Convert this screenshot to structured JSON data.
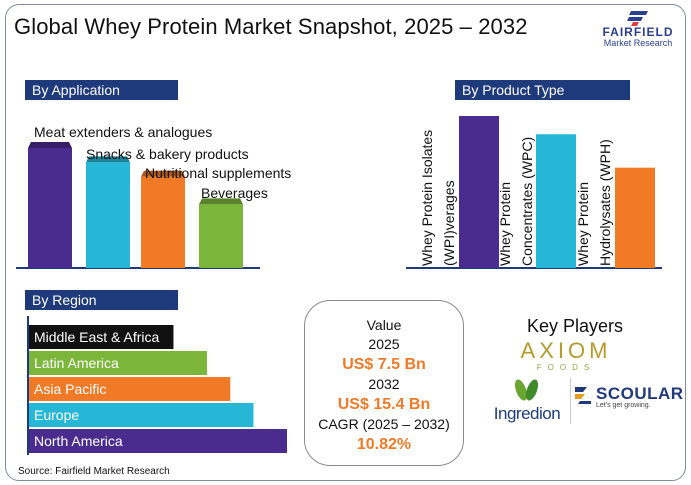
{
  "title": "Global Whey Protein Market Snapshot, 2025 – 2032",
  "logo": {
    "name": "FAIRFIELD",
    "sub": "Market Research",
    "color": "#2a3f8f"
  },
  "sections": {
    "application": "By Application",
    "product": "By Product Type",
    "region": "By Region"
  },
  "chart_data": [
    {
      "type": "bar",
      "title": "By Application",
      "categories": [
        "Meat extenders & analogues",
        "Snacks & bakery products",
        "Nutritional supplements",
        "Beverages"
      ],
      "values": [
        100,
        88,
        76,
        53
      ],
      "ylim": [
        0,
        100
      ],
      "colors": [
        "#4a2c8f",
        "#26b6d6",
        "#f07a26",
        "#7bb63a"
      ],
      "xlabel": "",
      "ylabel": ""
    },
    {
      "type": "bar",
      "title": "By Product Type",
      "categories": [
        "Whey Protein Isolates (WPI)verages",
        "Whey Protein Concentrates (WPC)",
        "Whey Protein Hydrolysates (WPH)"
      ],
      "label_lines": [
        [
          "Whey Protein Isolates",
          "(WPI)verages"
        ],
        [
          "Whey Protein",
          "Concentrates (WPC)"
        ],
        [
          "Whey Protein",
          "Hydrolysates (WPH)"
        ]
      ],
      "values": [
        100,
        88,
        66
      ],
      "ylim": [
        0,
        100
      ],
      "colors": [
        "#4a2c8f",
        "#26b6d6",
        "#f07a26"
      ],
      "xlabel": "",
      "ylabel": ""
    },
    {
      "type": "bar",
      "orientation": "horizontal",
      "title": "By Region",
      "categories": [
        "Middle East & Africa",
        "Latin America",
        "Asia Pacific",
        "Europe",
        "North America"
      ],
      "values": [
        56,
        69,
        78,
        87,
        100
      ],
      "xlim": [
        0,
        100
      ],
      "colors": [
        "#111111",
        "#7bb63a",
        "#f07a26",
        "#26b6d6",
        "#4a2c8f"
      ],
      "xlabel": "",
      "ylabel": ""
    }
  ],
  "value_box": {
    "label": "Value",
    "year1": "2025",
    "value1": "US$ 7.5 Bn",
    "year2": "2032",
    "value2": "US$ 15.4 Bn",
    "cagr_label": "CAGR (2025 – 2032)",
    "cagr": "10.82%"
  },
  "key_players": {
    "title": "Key Players",
    "axiom": "AXIOM",
    "axiom_sub": "FOODS",
    "ingredion": "Ingredion",
    "scoular": "SCOULAR",
    "scoular_tag": "Let's get growing."
  },
  "source": "Source: Fairfield Market Research"
}
